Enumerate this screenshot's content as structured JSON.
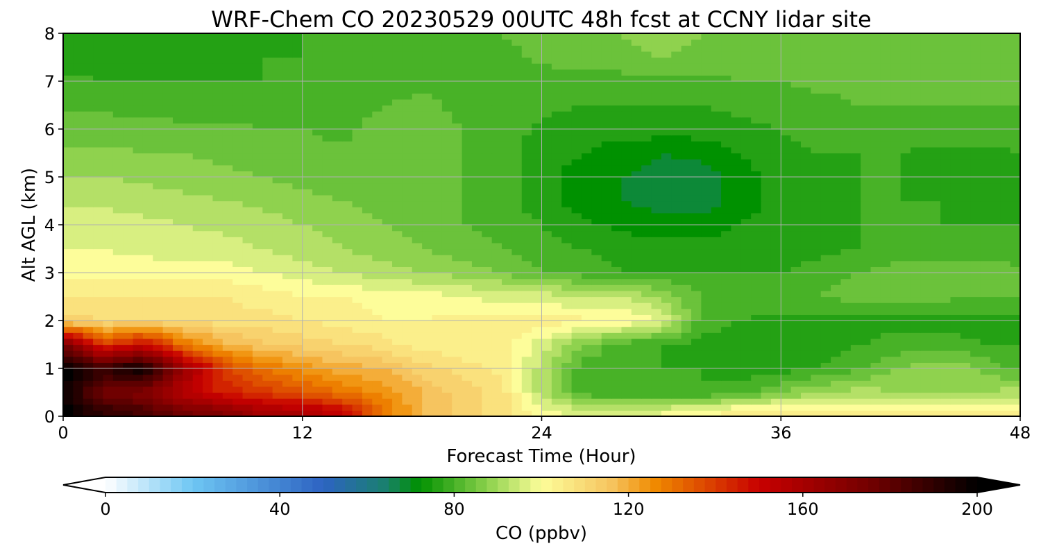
{
  "chart_data": {
    "type": "heatmap",
    "title": "WRF-Chem CO  20230529 00UTC 48h fcst at CCNY lidar site",
    "xlabel": "Forecast Time (Hour)",
    "ylabel": "Alt AGL (km)",
    "xlim": [
      0,
      48
    ],
    "ylim": [
      0,
      8
    ],
    "xticks": [
      0,
      12,
      24,
      36,
      48
    ],
    "yticks": [
      0,
      1,
      2,
      3,
      4,
      5,
      6,
      7,
      8
    ],
    "grid": true,
    "x": [
      0,
      2,
      4,
      6,
      8,
      10,
      12,
      14,
      16,
      18,
      20,
      22,
      24,
      26,
      28,
      30,
      32,
      34,
      36,
      38,
      40,
      42,
      44,
      46,
      48
    ],
    "y": [
      0.1,
      0.5,
      1,
      1.5,
      2,
      2.5,
      3,
      3.5,
      4,
      4.5,
      5,
      5.5,
      6,
      6.5,
      7,
      7.5,
      8
    ],
    "z": [
      [
        200,
        190,
        185,
        175,
        170,
        160,
        158,
        150,
        130,
        118,
        112,
        108,
        100,
        96,
        96,
        98,
        100,
        104,
        104,
        102,
        102,
        104,
        104,
        102,
        104
      ],
      [
        200,
        175,
        170,
        155,
        145,
        140,
        135,
        130,
        125,
        118,
        112,
        108,
        92,
        80,
        78,
        78,
        78,
        80,
        86,
        90,
        92,
        90,
        88,
        90,
        92
      ],
      [
        200,
        190,
        200,
        165,
        140,
        130,
        125,
        120,
        118,
        112,
        108,
        105,
        92,
        80,
        78,
        78,
        78,
        76,
        76,
        78,
        82,
        86,
        90,
        86,
        80
      ],
      [
        175,
        140,
        150,
        130,
        120,
        115,
        112,
        110,
        108,
        104,
        103,
        104,
        96,
        86,
        80,
        78,
        76,
        76,
        76,
        76,
        78,
        80,
        80,
        78,
        78
      ],
      [
        112,
        110,
        110,
        110,
        108,
        108,
        106,
        104,
        102,
        102,
        104,
        104,
        104,
        103,
        102,
        98,
        80,
        78,
        77,
        76,
        76,
        76,
        76,
        77,
        77
      ],
      [
        106,
        106,
        106,
        106,
        106,
        104,
        102,
        102,
        100,
        100,
        98,
        96,
        96,
        94,
        94,
        90,
        82,
        80,
        80,
        82,
        84,
        84,
        83,
        82,
        82
      ],
      [
        100,
        100,
        100,
        100,
        100,
        98,
        96,
        94,
        92,
        90,
        88,
        86,
        82,
        80,
        78,
        78,
        78,
        78,
        78,
        80,
        82,
        84,
        84,
        84,
        83
      ],
      [
        98,
        98,
        97,
        96,
        96,
        94,
        92,
        90,
        88,
        86,
        84,
        82,
        80,
        78,
        76,
        76,
        76,
        76,
        76,
        77,
        78,
        80,
        80,
        80,
        80
      ],
      [
        96,
        96,
        95,
        94,
        93,
        92,
        90,
        88,
        86,
        84,
        82,
        80,
        78,
        75,
        73,
        72,
        72,
        74,
        76,
        77,
        78,
        78,
        78,
        78,
        78
      ],
      [
        93,
        93,
        92,
        91,
        90,
        89,
        87,
        86,
        84,
        83,
        82,
        80,
        76,
        72,
        70,
        68,
        68,
        72,
        76,
        77,
        78,
        78,
        78,
        77,
        76
      ],
      [
        90,
        90,
        89,
        88,
        87,
        86,
        85,
        84,
        83,
        83,
        82,
        80,
        76,
        72,
        70,
        68,
        68,
        72,
        76,
        77,
        78,
        78,
        77,
        76,
        76
      ],
      [
        87,
        87,
        86,
        86,
        85,
        84,
        83,
        83,
        83,
        84,
        82,
        80,
        76,
        74,
        72,
        70,
        71,
        74,
        77,
        78,
        78,
        78,
        77,
        77,
        78
      ],
      [
        84,
        84,
        84,
        83,
        83,
        82,
        82,
        81,
        84,
        84,
        82,
        80,
        77,
        76,
        76,
        76,
        76,
        77,
        78,
        79,
        80,
        80,
        80,
        80,
        80
      ],
      [
        81,
        81,
        80,
        80,
        80,
        80,
        80,
        80,
        82,
        83,
        81,
        80,
        79,
        78,
        78,
        78,
        78,
        79,
        80,
        81,
        82,
        82,
        82,
        82,
        82
      ],
      [
        79,
        78,
        78,
        78,
        78,
        78,
        78,
        79,
        80,
        81,
        80,
        80,
        80,
        80,
        80,
        81,
        81,
        82,
        82,
        83,
        83,
        83,
        83,
        82,
        82
      ],
      [
        76,
        77,
        77,
        77,
        77,
        78,
        78,
        79,
        79,
        80,
        81,
        81,
        83,
        84,
        85,
        86,
        85,
        84,
        84,
        84,
        84,
        84,
        83,
        83,
        83
      ],
      [
        75,
        76,
        76,
        76,
        77,
        77,
        78,
        78,
        79,
        80,
        81,
        82,
        83,
        84,
        86,
        87,
        86,
        85,
        84,
        84,
        84,
        84,
        84,
        83,
        83
      ]
    ],
    "colorbar": {
      "label": "CO  (ppbv)",
      "min": 0,
      "max": 200,
      "ticks": [
        0,
        40,
        80,
        120,
        160,
        200
      ],
      "extend": "both",
      "color_stops": [
        {
          "v": 0,
          "c": "#ffffff"
        },
        {
          "v": 20,
          "c": "#6ec6f3"
        },
        {
          "v": 50,
          "c": "#2d63c2"
        },
        {
          "v": 64,
          "c": "#1a8070"
        },
        {
          "v": 72,
          "c": "#009100"
        },
        {
          "v": 88,
          "c": "#8fd24e"
        },
        {
          "v": 100,
          "c": "#fdfd9a"
        },
        {
          "v": 116,
          "c": "#f6c45f"
        },
        {
          "v": 126,
          "c": "#f08a00"
        },
        {
          "v": 150,
          "c": "#c80000"
        },
        {
          "v": 176,
          "c": "#700000"
        },
        {
          "v": 200,
          "c": "#000000"
        }
      ]
    }
  }
}
